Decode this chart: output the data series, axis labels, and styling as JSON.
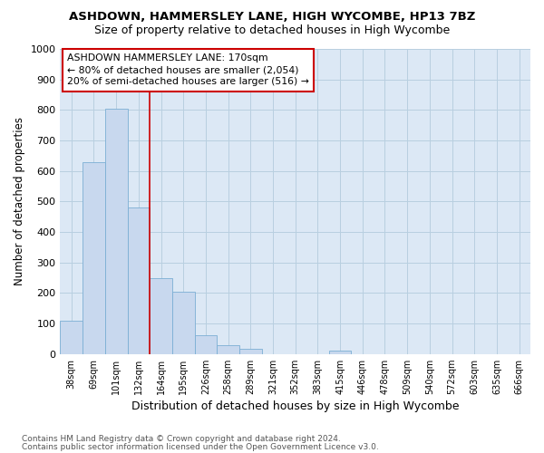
{
  "title1": "ASHDOWN, HAMMERSLEY LANE, HIGH WYCOMBE, HP13 7BZ",
  "title2": "Size of property relative to detached houses in High Wycombe",
  "xlabel": "Distribution of detached houses by size in High Wycombe",
  "ylabel": "Number of detached properties",
  "categories": [
    "38sqm",
    "69sqm",
    "101sqm",
    "132sqm",
    "164sqm",
    "195sqm",
    "226sqm",
    "258sqm",
    "289sqm",
    "321sqm",
    "352sqm",
    "383sqm",
    "415sqm",
    "446sqm",
    "478sqm",
    "509sqm",
    "540sqm",
    "572sqm",
    "603sqm",
    "635sqm",
    "666sqm"
  ],
  "values": [
    108,
    630,
    805,
    480,
    248,
    205,
    60,
    28,
    18,
    0,
    0,
    0,
    10,
    0,
    0,
    0,
    0,
    0,
    0,
    0,
    0
  ],
  "bar_color": "#c8d8ee",
  "bar_edge_color": "#7bafd4",
  "vline_color": "#cc0000",
  "vline_x": 3.5,
  "annotation_text": "ASHDOWN HAMMERSLEY LANE: 170sqm\n← 80% of detached houses are smaller (2,054)\n20% of semi-detached houses are larger (516) →",
  "annotation_box_color": "#ffffff",
  "annotation_box_edge": "#cc0000",
  "ylim": [
    0,
    1000
  ],
  "yticks": [
    0,
    100,
    200,
    300,
    400,
    500,
    600,
    700,
    800,
    900,
    1000
  ],
  "ax_facecolor": "#dce8f5",
  "background_color": "#ffffff",
  "grid_color": "#b8cfe0",
  "footer1": "Contains HM Land Registry data © Crown copyright and database right 2024.",
  "footer2": "Contains public sector information licensed under the Open Government Licence v3.0."
}
